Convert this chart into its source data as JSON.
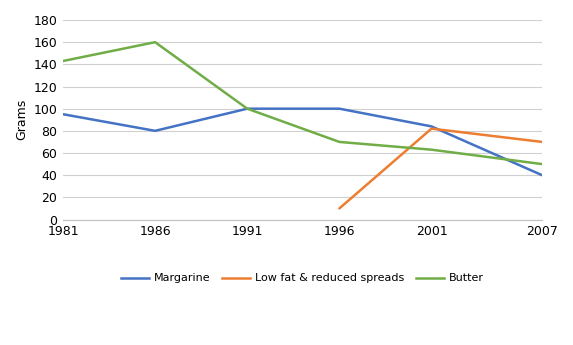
{
  "years": [
    1981,
    1986,
    1991,
    1996,
    2001,
    2007
  ],
  "margarine": [
    95,
    80,
    100,
    100,
    84,
    40
  ],
  "low_fat": [
    null,
    null,
    null,
    10,
    82,
    70
  ],
  "butter": [
    143,
    160,
    100,
    70,
    63,
    50
  ],
  "margarine_color": "#4472C4",
  "low_fat_color": "#ED7D31",
  "butter_color": "#70AD47",
  "ylabel": "Grams",
  "ylim_min": 0,
  "ylim_max": 180,
  "yticks": [
    0,
    20,
    40,
    60,
    80,
    100,
    120,
    140,
    160,
    180
  ],
  "xticks": [
    1981,
    1986,
    1991,
    1996,
    2001,
    2007
  ],
  "legend_labels": [
    "Margarine",
    "Low fat & reduced spreads",
    "Butter"
  ],
  "grid_color": "#d0d0d0",
  "line_width": 1.8,
  "tick_fontsize": 9,
  "ylabel_fontsize": 9
}
